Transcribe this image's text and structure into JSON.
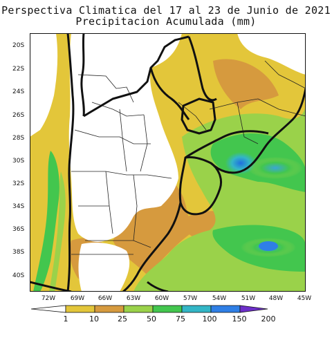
{
  "title_line1": "Perspectiva Climatica del 17 al 23 de Junio de 2021",
  "title_line2": "Precipitacion Acumulada (mm)",
  "lat_labels": [
    "20S",
    "22S",
    "24S",
    "26S",
    "28S",
    "30S",
    "32S",
    "34S",
    "36S",
    "38S",
    "40S"
  ],
  "lon_labels": [
    "72W",
    "69W",
    "66W",
    "63W",
    "60W",
    "57W",
    "54W",
    "51W",
    "48W",
    "45W"
  ],
  "colorbar": {
    "labels": [
      "1",
      "10",
      "25",
      "50",
      "75",
      "100",
      "150",
      "200"
    ],
    "colors": [
      "#ffffff",
      "#e3c63a",
      "#d69a3e",
      "#9ad24a",
      "#43c64e",
      "#33b6c6",
      "#2f7fe6",
      "#6d2fc9"
    ]
  }
}
